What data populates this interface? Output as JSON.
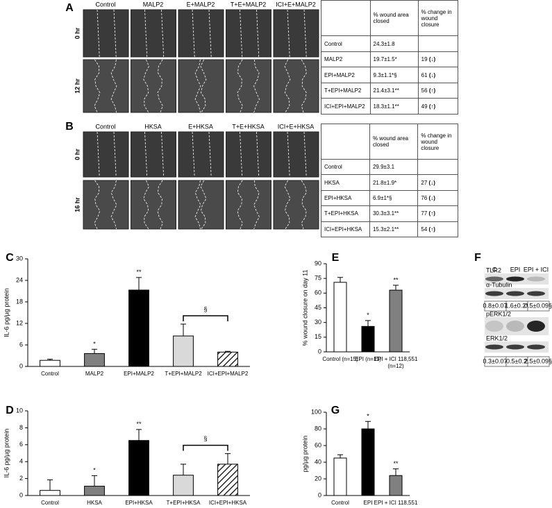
{
  "panels": {
    "A": {
      "label": "A",
      "columns": [
        "Control",
        "MALP2",
        "E+MALP2",
        "T+E+MALP2",
        "ICI+E+MALP2"
      ],
      "rows": [
        "0 hr",
        "12 hr"
      ],
      "table": {
        "header": [
          "% wound area closed",
          "% change in wound closure"
        ],
        "rows": [
          {
            "label": "Control",
            "closed": "24.3±1.8"
          },
          {
            "label": "MALP2",
            "closed": "19.7±1.5*",
            "change": "19",
            "arrow": "(↓)"
          },
          {
            "label": "EPI+MALP2",
            "closed": "9.3±1.1*§",
            "change": "61",
            "arrow": "(↓)"
          },
          {
            "label": "T+EPI+MALP2",
            "closed": "21.4±3.1**",
            "change": "56",
            "arrow": "(↑)"
          },
          {
            "label": "ICI+EPI+MALP2",
            "closed": "18.3±1.1**",
            "change": "49",
            "arrow": "(↑)"
          }
        ]
      }
    },
    "B": {
      "label": "B",
      "columns": [
        "Control",
        "HKSA",
        "E+HKSA",
        "T+E+HKSA",
        "ICI+E+HKSA"
      ],
      "rows": [
        "0 hr",
        "16 hr"
      ],
      "table": {
        "header": [
          "% wound area closed",
          "% change in wound closure"
        ],
        "rows": [
          {
            "label": "Control",
            "closed": "29.9±3.1"
          },
          {
            "label": "HKSA",
            "closed": "21.8±1.9*",
            "change": "27",
            "arrow": "(↓)"
          },
          {
            "label": "EPI+HKSA",
            "closed": "6.9±1*§",
            "change": "76",
            "arrow": "(↓)"
          },
          {
            "label": "T+EPI+HKSA",
            "closed": "30.3±3.1**",
            "change": "77",
            "arrow": "(↑)"
          },
          {
            "label": "ICI+EPI+HKSA",
            "closed": "15.3±2.1**",
            "change": "54",
            "arrow": "(↑)"
          }
        ]
      }
    },
    "F": {
      "label": "F",
      "columns": [
        "C",
        "EPI",
        "EPI + ICI"
      ],
      "blots": [
        {
          "bands": [
            "TLR2",
            "α-Tubulin"
          ],
          "quant": [
            "0.8±0.07",
            "1.6±0.2*",
            "0.5±0.09§"
          ]
        },
        {
          "bands": [
            "pERK1/2",
            "ERK1/2"
          ],
          "quant": [
            "0.3±0.07",
            "0.5±0.2",
            "2.5±0.09§"
          ]
        }
      ]
    }
  },
  "chart_data": [
    {
      "type": "bar",
      "panel": "C",
      "y_label": "IL-6 pg/µg protein",
      "categories": [
        "Control",
        "MALP2",
        "EPI+MALP2",
        "T+EPI+MALP2",
        "ICI+EPI+MALP2"
      ],
      "values": [
        1.7,
        3.6,
        21.3,
        8.5,
        4.0
      ],
      "errors": [
        0.3,
        1.2,
        3.5,
        3.3,
        0.2
      ],
      "colors": [
        "#ffffff",
        "#808080",
        "#000000",
        "#d9d9d9",
        "#ffffff"
      ],
      "hatched": [
        false,
        false,
        false,
        false,
        true
      ],
      "significance": [
        null,
        "*",
        "**",
        null,
        null
      ],
      "bracket": {
        "label": "§",
        "between": [
          "T+EPI+MALP2",
          "ICI+EPI+MALP2"
        ]
      },
      "ylim": [
        0,
        30
      ],
      "yticks": [
        0,
        6,
        12,
        18,
        24,
        30
      ]
    },
    {
      "type": "bar",
      "panel": "D",
      "y_label": "IL-6 pg/µg protein",
      "categories": [
        "Control",
        "HKSA",
        "EPI+HKSA",
        "T+EPI+HKSA",
        "ICI+EPI+HKSA"
      ],
      "values": [
        0.6,
        1.1,
        6.5,
        2.4,
        3.7
      ],
      "errors": [
        1.25,
        1.25,
        1.3,
        1.3,
        1.25
      ],
      "colors": [
        "#ffffff",
        "#808080",
        "#000000",
        "#d9d9d9",
        "#ffffff"
      ],
      "hatched": [
        false,
        false,
        false,
        false,
        true
      ],
      "significance": [
        null,
        "*",
        "**",
        null,
        null
      ],
      "bracket": {
        "label": "§",
        "between": [
          "T+EPI+HKSA",
          "ICI+EPI+HKSA"
        ]
      },
      "ylim": [
        0,
        10
      ],
      "yticks": [
        0,
        2,
        4,
        6,
        8,
        10
      ]
    },
    {
      "type": "bar",
      "panel": "E",
      "y_label": "% wound closure on day 11",
      "categories": [
        "Control (n=15)",
        "EPI (n=11)",
        "EPI + ICI 118,551 (n=12)"
      ],
      "values": [
        71,
        26,
        63
      ],
      "errors": [
        5,
        6,
        5
      ],
      "colors": [
        "#ffffff",
        "#000000",
        "#808080"
      ],
      "hatched": [
        false,
        false,
        false
      ],
      "significance": [
        null,
        "*",
        "**"
      ],
      "ylim": [
        0,
        90
      ],
      "yticks": [
        0,
        15,
        30,
        45,
        60,
        75,
        90
      ]
    },
    {
      "type": "bar",
      "panel": "G",
      "y_label": "pg/µg protein",
      "categories": [
        "Control",
        "EPI",
        "EPI + ICI 118,551"
      ],
      "values": [
        45,
        80,
        24
      ],
      "errors": [
        4,
        9,
        8
      ],
      "colors": [
        "#ffffff",
        "#000000",
        "#808080"
      ],
      "hatched": [
        false,
        false,
        false
      ],
      "significance": [
        null,
        "*",
        "**"
      ],
      "ylim": [
        0,
        100
      ],
      "yticks": [
        0,
        20,
        40,
        60,
        80,
        100
      ]
    }
  ]
}
